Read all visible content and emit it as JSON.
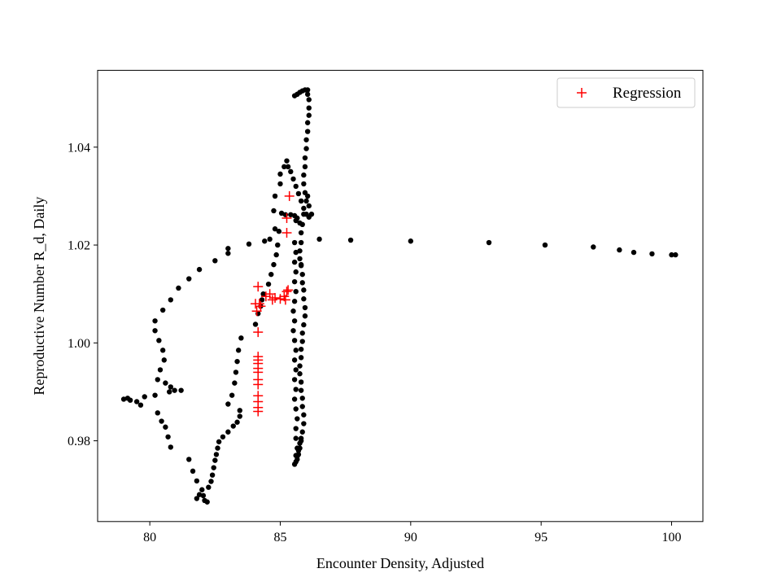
{
  "chart_data": {
    "type": "scatter",
    "title": "",
    "xlabel": "Encounter Density, Adjusted",
    "ylabel": "Reproductive Number R_d, Daily",
    "xlim": [
      78,
      101.2
    ],
    "ylim": [
      0.9635,
      1.0557
    ],
    "xticks": [
      80,
      85,
      90,
      95,
      100
    ],
    "yticks": [
      0.98,
      1.0,
      1.02,
      1.04
    ],
    "xtick_labels": [
      "80",
      "85",
      "90",
      "95",
      "100"
    ],
    "ytick_labels": [
      "0.98",
      "1.00",
      "1.02",
      "1.04"
    ],
    "grid": false,
    "legend": {
      "position": "top-right",
      "entries": [
        "Regression"
      ]
    },
    "series": [
      {
        "name": "",
        "marker": "circle",
        "color": "#000000",
        "points": [
          [
            79.0,
            0.9885
          ],
          [
            79.15,
            0.9887
          ],
          [
            79.25,
            0.9883
          ],
          [
            79.5,
            0.988
          ],
          [
            79.65,
            0.9873
          ],
          [
            79.8,
            0.989
          ],
          [
            80.2,
            0.9893
          ],
          [
            80.3,
            0.9857
          ],
          [
            80.45,
            0.984
          ],
          [
            80.6,
            0.9828
          ],
          [
            80.7,
            0.9808
          ],
          [
            80.8,
            0.9787
          ],
          [
            80.2,
            1.0045
          ],
          [
            80.2,
            1.0025
          ],
          [
            80.35,
            1.0005
          ],
          [
            80.5,
            0.9985
          ],
          [
            80.55,
            0.9965
          ],
          [
            80.4,
            0.9945
          ],
          [
            80.3,
            0.9925
          ],
          [
            80.6,
            0.9918
          ],
          [
            80.8,
            0.991
          ],
          [
            80.75,
            0.99
          ],
          [
            80.95,
            0.9903
          ],
          [
            81.2,
            0.9903
          ],
          [
            80.5,
            1.0067
          ],
          [
            80.8,
            1.0088
          ],
          [
            81.1,
            1.0112
          ],
          [
            81.5,
            1.0131
          ],
          [
            81.9,
            1.015
          ],
          [
            82.5,
            1.0168
          ],
          [
            83.0,
            1.0183
          ],
          [
            83.0,
            1.0193
          ],
          [
            83.8,
            1.0202
          ],
          [
            84.4,
            1.0208
          ],
          [
            84.6,
            1.0212
          ],
          [
            84.8,
            1.0233
          ],
          [
            81.5,
            0.9762
          ],
          [
            81.65,
            0.9738
          ],
          [
            81.8,
            0.9718
          ],
          [
            81.8,
            0.9682
          ],
          [
            81.9,
            0.969
          ],
          [
            82.0,
            0.97
          ],
          [
            82.05,
            0.9688
          ],
          [
            82.1,
            0.9678
          ],
          [
            82.2,
            0.9675
          ],
          [
            82.25,
            0.9705
          ],
          [
            82.35,
            0.9717
          ],
          [
            82.4,
            0.973
          ],
          [
            82.45,
            0.9745
          ],
          [
            82.5,
            0.976
          ],
          [
            82.55,
            0.9772
          ],
          [
            82.6,
            0.9785
          ],
          [
            82.65,
            0.9798
          ],
          [
            82.8,
            0.9808
          ],
          [
            83.0,
            0.9818
          ],
          [
            83.2,
            0.983
          ],
          [
            83.35,
            0.9838
          ],
          [
            83.45,
            0.985
          ],
          [
            83.45,
            0.9862
          ],
          [
            83.0,
            0.9875
          ],
          [
            83.15,
            0.9893
          ],
          [
            83.25,
            0.9918
          ],
          [
            83.3,
            0.994
          ],
          [
            83.35,
            0.9962
          ],
          [
            83.4,
            0.9985
          ],
          [
            83.5,
            1.001
          ],
          [
            84.05,
            1.0038
          ],
          [
            84.15,
            1.006
          ],
          [
            84.25,
            1.0075
          ],
          [
            84.3,
            1.0088
          ],
          [
            84.35,
            1.01
          ],
          [
            84.55,
            1.012
          ],
          [
            84.65,
            1.014
          ],
          [
            84.75,
            1.016
          ],
          [
            84.85,
            1.018
          ],
          [
            84.9,
            1.02
          ],
          [
            84.95,
            1.0228
          ],
          [
            84.75,
            1.027
          ],
          [
            84.8,
            1.03
          ],
          [
            85.0,
            1.0325
          ],
          [
            85.0,
            1.0345
          ],
          [
            85.15,
            1.036
          ],
          [
            85.25,
            1.0372
          ],
          [
            85.3,
            1.036
          ],
          [
            85.4,
            1.035
          ],
          [
            85.5,
            1.0335
          ],
          [
            85.6,
            1.032
          ],
          [
            85.7,
            1.0305
          ],
          [
            85.8,
            1.029
          ],
          [
            85.9,
            1.0275
          ],
          [
            86.0,
            1.0263
          ],
          [
            86.1,
            1.0257
          ],
          [
            86.2,
            1.0263
          ],
          [
            85.05,
            1.0265
          ],
          [
            85.2,
            1.0262
          ],
          [
            85.4,
            1.0262
          ],
          [
            85.55,
            1.026
          ],
          [
            85.65,
            1.0255
          ],
          [
            85.75,
            1.0245
          ],
          [
            85.55,
            1.0505
          ],
          [
            85.65,
            1.0508
          ],
          [
            85.75,
            1.0512
          ],
          [
            85.85,
            1.0515
          ],
          [
            85.95,
            1.0517
          ],
          [
            86.05,
            1.0517
          ],
          [
            86.05,
            1.0508
          ],
          [
            86.1,
            1.0497
          ],
          [
            86.1,
            1.048
          ],
          [
            86.1,
            1.0465
          ],
          [
            86.05,
            1.045
          ],
          [
            86.05,
            1.0432
          ],
          [
            86.0,
            1.0415
          ],
          [
            86.0,
            1.0397
          ],
          [
            85.95,
            1.0378
          ],
          [
            85.95,
            1.036
          ],
          [
            85.9,
            1.0343
          ],
          [
            85.9,
            1.0325
          ],
          [
            85.95,
            1.0307
          ],
          [
            86.0,
            1.029
          ],
          [
            86.1,
            1.028
          ],
          [
            86.05,
            1.03
          ],
          [
            85.9,
            1.0263
          ],
          [
            85.85,
            1.0242
          ],
          [
            85.8,
            1.0225
          ],
          [
            85.8,
            1.0205
          ],
          [
            85.75,
            1.0188
          ],
          [
            85.75,
            1.0172
          ],
          [
            85.8,
            1.0158
          ],
          [
            85.85,
            1.014
          ],
          [
            85.85,
            1.0123
          ],
          [
            85.9,
            1.0108
          ],
          [
            85.9,
            1.009
          ],
          [
            85.95,
            1.0072
          ],
          [
            85.95,
            1.0055
          ],
          [
            85.9,
            1.0037
          ],
          [
            85.85,
            1.002
          ],
          [
            85.85,
            1.0003
          ],
          [
            85.8,
            0.9987
          ],
          [
            85.8,
            0.997
          ],
          [
            85.75,
            0.9953
          ],
          [
            85.75,
            0.9937
          ],
          [
            85.8,
            0.992
          ],
          [
            85.8,
            0.9903
          ],
          [
            85.85,
            0.9887
          ],
          [
            85.85,
            0.987
          ],
          [
            85.9,
            0.9853
          ],
          [
            85.9,
            0.9835
          ],
          [
            85.85,
            0.9818
          ],
          [
            85.8,
            0.98
          ],
          [
            85.75,
            0.9785
          ],
          [
            85.7,
            0.9772
          ],
          [
            85.65,
            0.9762
          ],
          [
            85.6,
            0.9757
          ],
          [
            85.55,
            0.9752
          ],
          [
            85.65,
            0.9768
          ],
          [
            85.7,
            0.978
          ],
          [
            85.75,
            0.9795
          ],
          [
            85.8,
            0.9805
          ],
          [
            85.8,
            1.016
          ],
          [
            85.6,
            1.025
          ],
          [
            85.55,
            1.0205
          ],
          [
            85.6,
            1.0185
          ],
          [
            85.55,
            1.0165
          ],
          [
            85.6,
            1.0145
          ],
          [
            85.55,
            1.0125
          ],
          [
            85.6,
            1.0105
          ],
          [
            85.55,
            1.0085
          ],
          [
            85.5,
            1.0065
          ],
          [
            85.55,
            1.0045
          ],
          [
            85.5,
            1.0025
          ],
          [
            85.55,
            1.0005
          ],
          [
            85.6,
            0.9985
          ],
          [
            85.55,
            0.9965
          ],
          [
            85.6,
            0.9945
          ],
          [
            85.55,
            0.9925
          ],
          [
            85.6,
            0.9905
          ],
          [
            85.55,
            0.9885
          ],
          [
            85.6,
            0.9865
          ],
          [
            85.65,
            0.9845
          ],
          [
            85.6,
            0.9825
          ],
          [
            85.6,
            0.9805
          ],
          [
            85.65,
            0.9785
          ],
          [
            85.6,
            0.977
          ],
          [
            86.5,
            1.0212
          ],
          [
            87.7,
            1.021
          ],
          [
            90.0,
            1.0208
          ],
          [
            93.0,
            1.0205
          ],
          [
            95.15,
            1.02
          ],
          [
            97.0,
            1.0196
          ],
          [
            98.0,
            1.019
          ],
          [
            98.55,
            1.0185
          ],
          [
            99.25,
            1.0182
          ],
          [
            100.0,
            1.018
          ],
          [
            100.15,
            1.018
          ]
        ]
      },
      {
        "name": "Regression",
        "marker": "plus",
        "color": "#ff0000",
        "points": [
          [
            85.35,
            1.03
          ],
          [
            85.25,
            1.0255
          ],
          [
            85.25,
            1.0225
          ],
          [
            84.15,
            1.0115
          ],
          [
            84.05,
            1.008
          ],
          [
            84.2,
            1.008
          ],
          [
            84.1,
            1.0065
          ],
          [
            84.25,
            1.0075
          ],
          [
            84.45,
            1.0095
          ],
          [
            84.6,
            1.01
          ],
          [
            84.8,
            1.0092
          ],
          [
            85.0,
            1.009
          ],
          [
            85.15,
            1.0095
          ],
          [
            85.25,
            1.0105
          ],
          [
            85.3,
            1.0108
          ],
          [
            84.7,
            1.0088
          ],
          [
            85.2,
            1.0088
          ],
          [
            84.15,
            1.0022
          ],
          [
            84.15,
            0.9972
          ],
          [
            84.15,
            0.9965
          ],
          [
            84.15,
            0.9958
          ],
          [
            84.15,
            0.9948
          ],
          [
            84.15,
            0.994
          ],
          [
            84.15,
            0.9925
          ],
          [
            84.15,
            0.9915
          ],
          [
            84.15,
            0.9892
          ],
          [
            84.15,
            0.988
          ],
          [
            84.15,
            0.9868
          ],
          [
            84.15,
            0.986
          ]
        ]
      }
    ]
  }
}
